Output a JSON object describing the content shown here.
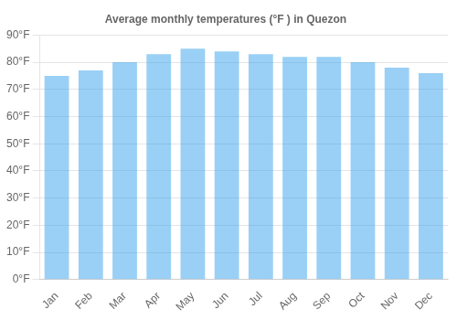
{
  "chart_data": {
    "type": "bar",
    "title": "Average monthly temperatures (°F ) in Quezon",
    "categories": [
      "Jan",
      "Feb",
      "Mar",
      "Apr",
      "May",
      "Jun",
      "Jul",
      "Aug",
      "Sep",
      "Oct",
      "Nov",
      "Dec"
    ],
    "values": [
      75,
      77,
      80,
      83,
      85,
      84,
      83,
      82,
      82,
      80,
      78,
      76
    ],
    "ylim": [
      0,
      90
    ],
    "yticks": [
      {
        "value": 0,
        "label": "0°F"
      },
      {
        "value": 10,
        "label": "10°F"
      },
      {
        "value": 20,
        "label": "20°F"
      },
      {
        "value": 30,
        "label": "30°F"
      },
      {
        "value": 40,
        "label": "40°F"
      },
      {
        "value": 50,
        "label": "50°F"
      },
      {
        "value": 60,
        "label": "60°F"
      },
      {
        "value": 70,
        "label": "70°F"
      },
      {
        "value": 80,
        "label": "80°F"
      },
      {
        "value": 90,
        "label": "90°F"
      }
    ],
    "grid": true
  }
}
